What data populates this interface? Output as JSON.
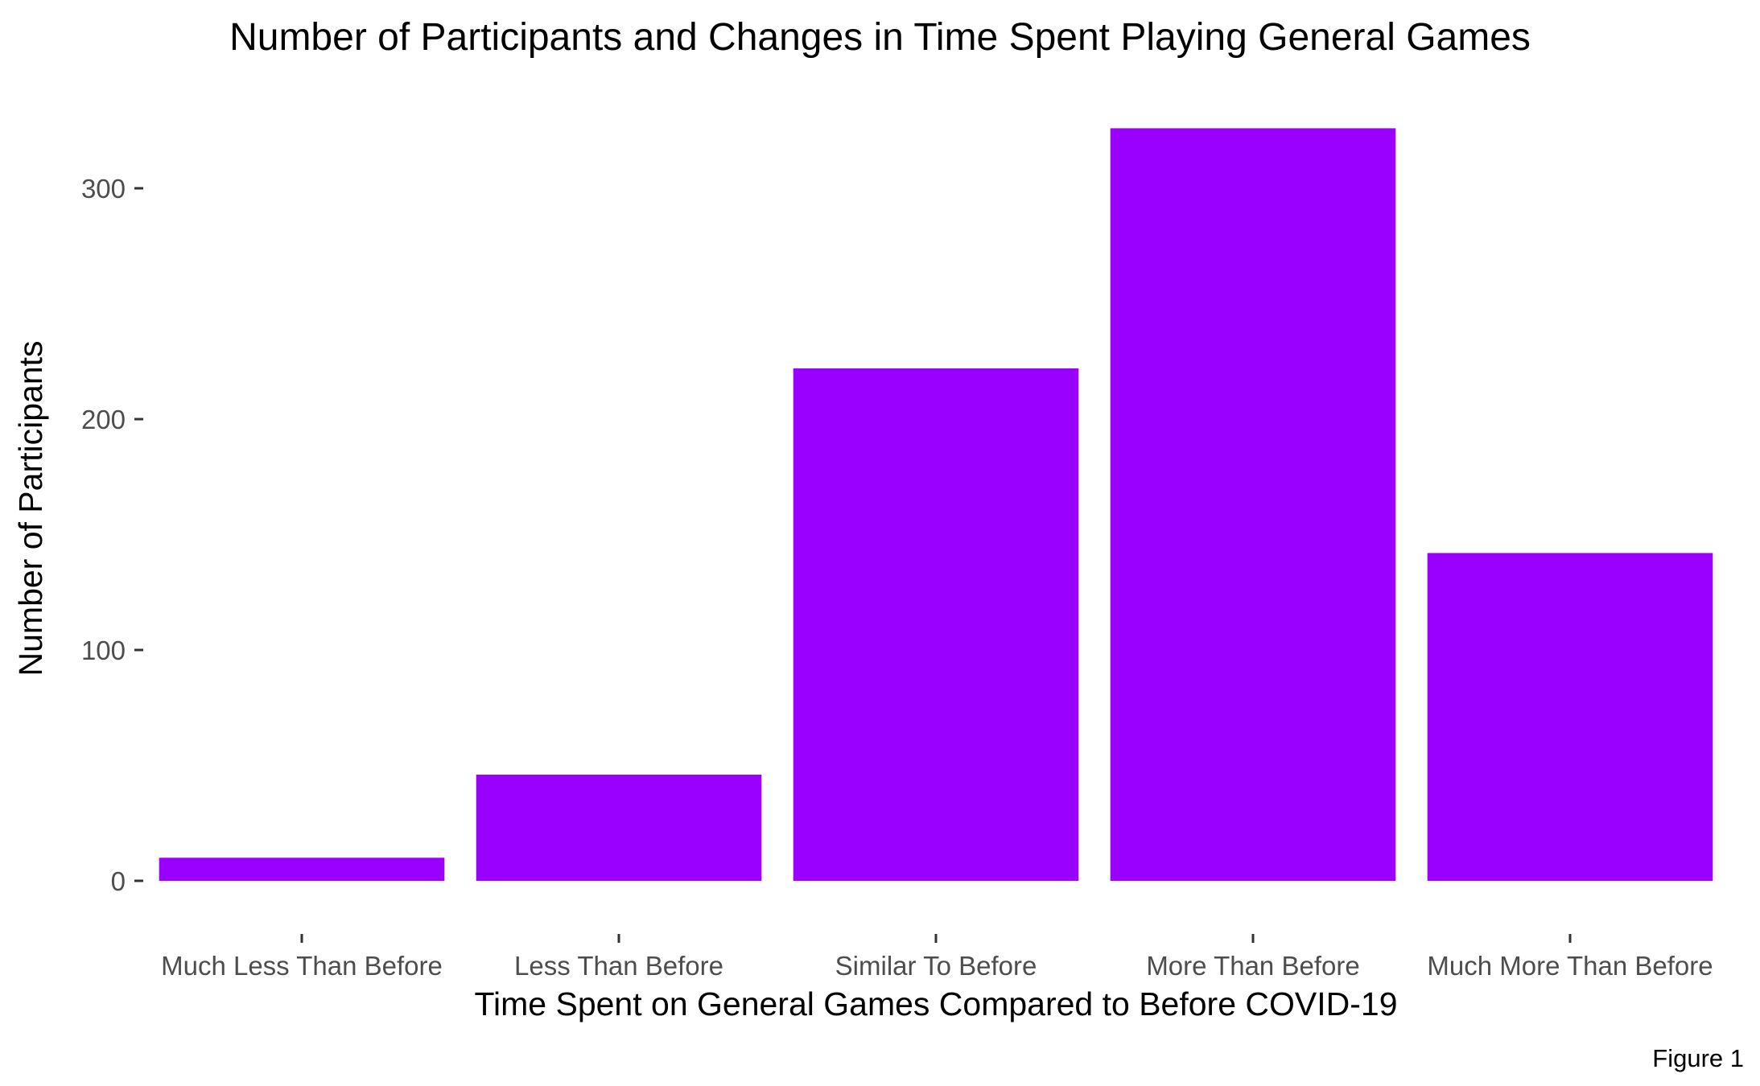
{
  "chart_data": {
    "type": "bar",
    "title": "Number of Participants and Changes in Time Spent Playing General Games",
    "xlabel": "Time Spent on General Games Compared to Before COVID-19",
    "ylabel": "Number of Participants",
    "caption": "Figure 1",
    "categories": [
      "Much Less Than Before",
      "Less Than Before",
      "Similar To Before",
      "More Than Before",
      "Much More Than Before"
    ],
    "values": [
      10,
      46,
      222,
      326,
      142
    ],
    "ylim": [
      -15,
      338
    ],
    "yticks": [
      0,
      100,
      200,
      300
    ],
    "grid": false,
    "legend": "none",
    "bar_color": "#9900FF"
  }
}
